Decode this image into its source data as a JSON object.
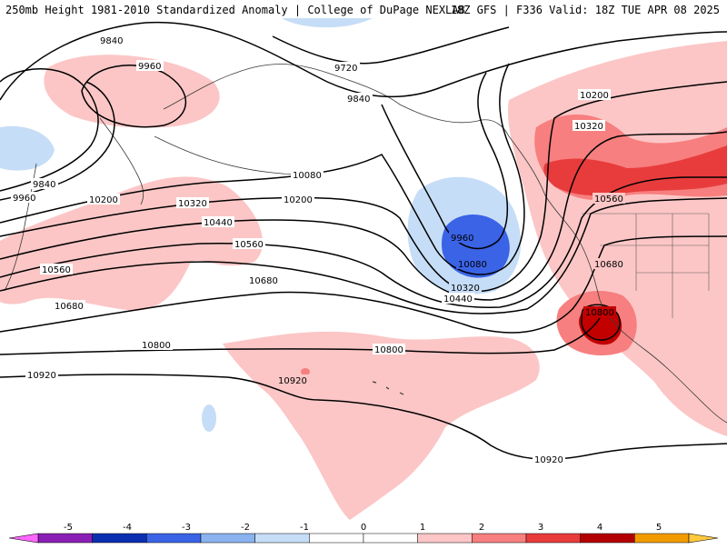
{
  "header": {
    "title_left": "250mb Height 1981-2010 Standardized Anomaly | College of DuPage NEXLAB",
    "title_right": "18Z GFS | F336 Valid: 18Z TUE APR 08 2025"
  },
  "contour_labels": {
    "c1": "9840",
    "c2": "9960",
    "c3": "9720",
    "c4": "9840",
    "c5": "10200",
    "c6": "10320",
    "c7": "10080",
    "c8": "9840",
    "c9": "9960",
    "c10": "10200",
    "c11": "10320",
    "c12": "10200",
    "c13": "10440",
    "c14": "10560",
    "c15": "10560",
    "c16": "10680",
    "c17": "10680",
    "c18": "9960",
    "c19": "10080",
    "c20": "10320",
    "c21": "10440",
    "c22": "10560",
    "c23": "10680",
    "c24": "10800",
    "c25": "10800",
    "c26": "10800",
    "c27": "10920",
    "c28": "10920",
    "c29": "10920"
  },
  "colorbar": {
    "ticks": [
      "-5",
      "-4",
      "-3",
      "-2",
      "-1",
      "0",
      "1",
      "2",
      "3",
      "4",
      "5"
    ],
    "colors": [
      "#ff66ff",
      "#8a1fb5",
      "#0a2fb0",
      "#3a63e6",
      "#89b2ef",
      "#c6ddf7",
      "#ffffff",
      "#ffffff",
      "#fcc6c6",
      "#f77f7f",
      "#e83c3c",
      "#b30000",
      "#f29b00",
      "#ffc83d"
    ]
  },
  "colors": {
    "pos1": "#fcc6c6",
    "pos2": "#f77f7f",
    "pos3": "#e83c3c",
    "pos4": "#c20000",
    "neg1": "#c6ddf7",
    "neg3": "#3a63e6"
  }
}
